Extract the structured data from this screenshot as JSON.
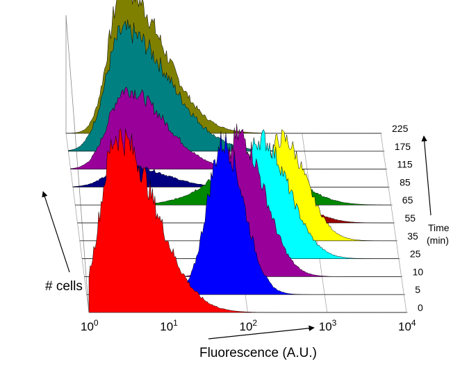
{
  "chart_data": {
    "type": "area",
    "subtype": "3d-stacked-histogram",
    "title": "",
    "xlabel": "Fluorescence (A.U.)",
    "ylabel": "# cells",
    "zlabel": "Time (min)",
    "zlabel_lines": [
      "Time",
      "(min)"
    ],
    "x_scale": "log",
    "xlim": [
      1,
      10000
    ],
    "x_ticks": [
      {
        "base": "10",
        "exp": "0"
      },
      {
        "base": "10",
        "exp": "1"
      },
      {
        "base": "10",
        "exp": "2"
      },
      {
        "base": "10",
        "exp": "3"
      },
      {
        "base": "10",
        "exp": "4"
      }
    ],
    "series": [
      {
        "name": "0",
        "peak_log10": 0.35,
        "width": 0.2,
        "skew": 2.4,
        "height": 1.0,
        "color": "#ff0000"
      },
      {
        "name": "5",
        "peak_log10": 1.72,
        "width": 0.2,
        "skew": 1.3,
        "height": 0.86,
        "color": "#0000ff"
      },
      {
        "name": "10",
        "peak_log10": 1.95,
        "width": 0.2,
        "skew": 1.6,
        "height": 0.8,
        "color": "#990099"
      },
      {
        "name": "25",
        "peak_log10": 2.25,
        "width": 0.22,
        "skew": 1.6,
        "height": 0.68,
        "color": "#00ffff"
      },
      {
        "name": "35",
        "peak_log10": 2.55,
        "width": 0.22,
        "skew": 1.4,
        "height": 0.58,
        "color": "#ffff00"
      },
      {
        "name": "55",
        "peak_log10": 2.62,
        "width": 0.28,
        "skew": 1.2,
        "height": 0.12,
        "color": "#990000"
      },
      {
        "name": "65",
        "peak_log10": 2.3,
        "width": 0.5,
        "skew": 0.9,
        "height": 0.28,
        "color": "#008800"
      },
      {
        "name": "85",
        "peak_log10": 0.7,
        "width": 0.25,
        "skew": 1.8,
        "height": 0.12,
        "color": "#000080"
      },
      {
        "name": "115",
        "peak_log10": 0.7,
        "width": 0.22,
        "skew": 2.2,
        "height": 0.45,
        "color": "#990099"
      },
      {
        "name": "175",
        "peak_log10": 0.7,
        "width": 0.22,
        "skew": 2.6,
        "height": 0.68,
        "color": "#008080"
      },
      {
        "name": "225",
        "peak_log10": 0.72,
        "width": 0.18,
        "skew": 2.8,
        "height": 0.82,
        "color": "#808000"
      }
    ]
  }
}
